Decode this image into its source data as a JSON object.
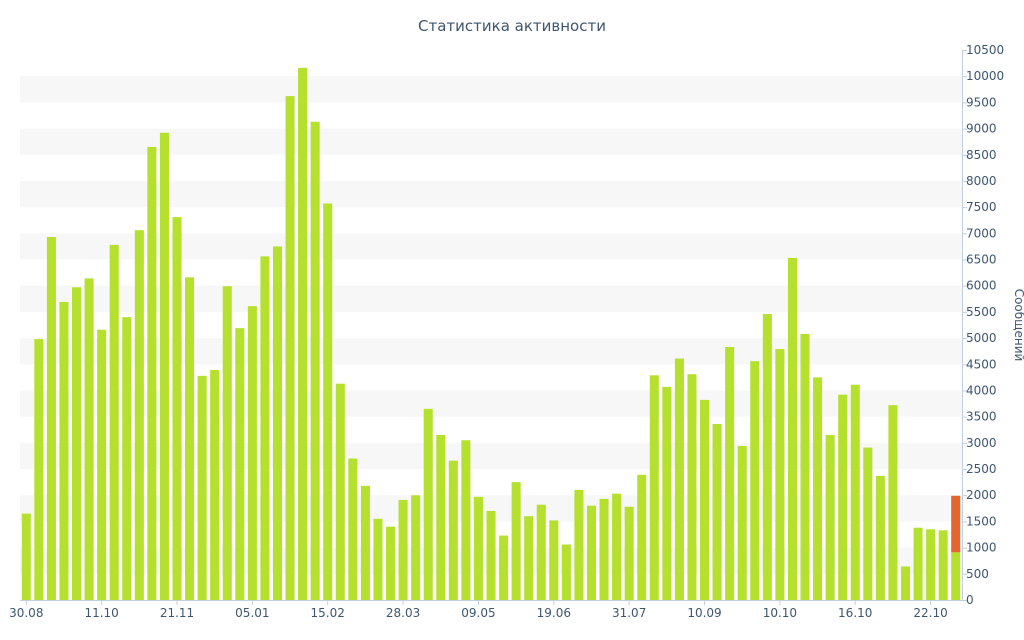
{
  "chart_data": {
    "type": "bar",
    "title": "Статистика активности",
    "ylabel": "Сообщений",
    "ylim": [
      0,
      10500
    ],
    "ytick_step": 500,
    "grid": "alternating horizontal bands",
    "y_axis_position": "right",
    "colors": {
      "bar": "#b5e02e",
      "highlight": "#e4652e",
      "band": "#f7f7f7",
      "axis": "#3e576f"
    },
    "x_tick_labels": [
      {
        "index": 0,
        "label": "30.08"
      },
      {
        "index": 6,
        "label": "11.10"
      },
      {
        "index": 12,
        "label": "21.11"
      },
      {
        "index": 18,
        "label": "05.01"
      },
      {
        "index": 24,
        "label": "15.02"
      },
      {
        "index": 30,
        "label": "28.03"
      },
      {
        "index": 36,
        "label": "09.05"
      },
      {
        "index": 42,
        "label": "19.06"
      },
      {
        "index": 48,
        "label": "31.07"
      },
      {
        "index": 54,
        "label": "10.09"
      },
      {
        "index": 60,
        "label": "10.10"
      },
      {
        "index": 66,
        "label": "16.10"
      },
      {
        "index": 72,
        "label": "22.10"
      }
    ],
    "series": [
      {
        "values": [
          1650,
          4980,
          6930,
          5690,
          5970,
          6140,
          5160,
          6780,
          5400,
          7060,
          8650,
          8920,
          7310,
          6160,
          4280,
          4390,
          5990,
          5190,
          5610,
          6560,
          6750,
          9620,
          10160,
          9130,
          7570,
          4130,
          2700,
          2180,
          1550,
          1400,
          1910,
          2000,
          3650,
          3150,
          2660,
          3050,
          1970,
          1700,
          1230,
          2250,
          1600,
          1820,
          1520,
          1060,
          2100,
          1800,
          1930,
          2030,
          1780,
          2390,
          4290,
          4070,
          4610,
          4310,
          3820,
          3360,
          4830,
          2940,
          4560,
          5460,
          4790,
          6530,
          5080,
          4250,
          3150,
          3920,
          4110,
          2910,
          2370,
          3720,
          640,
          1380,
          1350,
          1330,
          910
        ]
      },
      {
        "values": [
          null,
          null,
          null,
          null,
          null,
          null,
          null,
          null,
          null,
          null,
          null,
          null,
          null,
          null,
          null,
          null,
          null,
          null,
          null,
          null,
          null,
          null,
          null,
          null,
          null,
          null,
          null,
          null,
          null,
          null,
          null,
          null,
          null,
          null,
          null,
          null,
          null,
          null,
          null,
          null,
          null,
          null,
          null,
          null,
          null,
          null,
          null,
          null,
          null,
          null,
          null,
          null,
          null,
          null,
          null,
          null,
          null,
          null,
          null,
          null,
          null,
          null,
          null,
          null,
          null,
          null,
          null,
          null,
          null,
          null,
          null,
          null,
          null,
          null,
          1080
        ]
      }
    ]
  }
}
